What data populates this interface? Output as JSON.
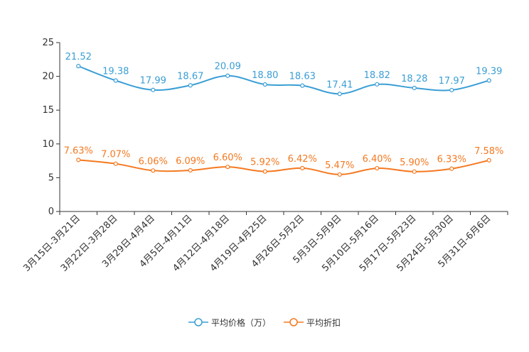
{
  "chart_data": {
    "type": "line",
    "categories": [
      "3月15日-3月21日",
      "3月22日-3月28日",
      "3月29日-4月4日",
      "4月5日-4月11日",
      "4月12日-4月18日",
      "4月19日-4月25日",
      "4月26日-5月2日",
      "5月3日-5月9日",
      "5月10日-5月16日",
      "5月17日-5月23日",
      "5月24日-5月30日",
      "5月31日-6月6日"
    ],
    "ylim": [
      0,
      25
    ],
    "yticks": [
      0,
      5,
      10,
      15,
      20,
      25
    ],
    "series": [
      {
        "name": "平均价格（万）",
        "color": "#3a9ed5",
        "values": [
          21.52,
          19.38,
          17.99,
          18.67,
          20.09,
          18.8,
          18.63,
          17.41,
          18.82,
          18.28,
          17.97,
          19.39
        ],
        "labels": [
          "21.52",
          "19.38",
          "17.99",
          "18.67",
          "20.09",
          "18.80",
          "18.63",
          "17.41",
          "18.82",
          "18.28",
          "17.97",
          "19.39"
        ]
      },
      {
        "name": "平均折扣",
        "color": "#f47920",
        "values": [
          7.63,
          7.07,
          6.06,
          6.09,
          6.6,
          5.92,
          6.42,
          5.47,
          6.4,
          5.9,
          6.33,
          7.58
        ],
        "labels": [
          "7.63%",
          "7.07%",
          "6.06%",
          "6.09%",
          "6.60%",
          "5.92%",
          "6.42%",
          "5.47%",
          "6.40%",
          "5.90%",
          "6.33%",
          "7.58%"
        ]
      }
    ],
    "legend_position": "bottom-center"
  }
}
